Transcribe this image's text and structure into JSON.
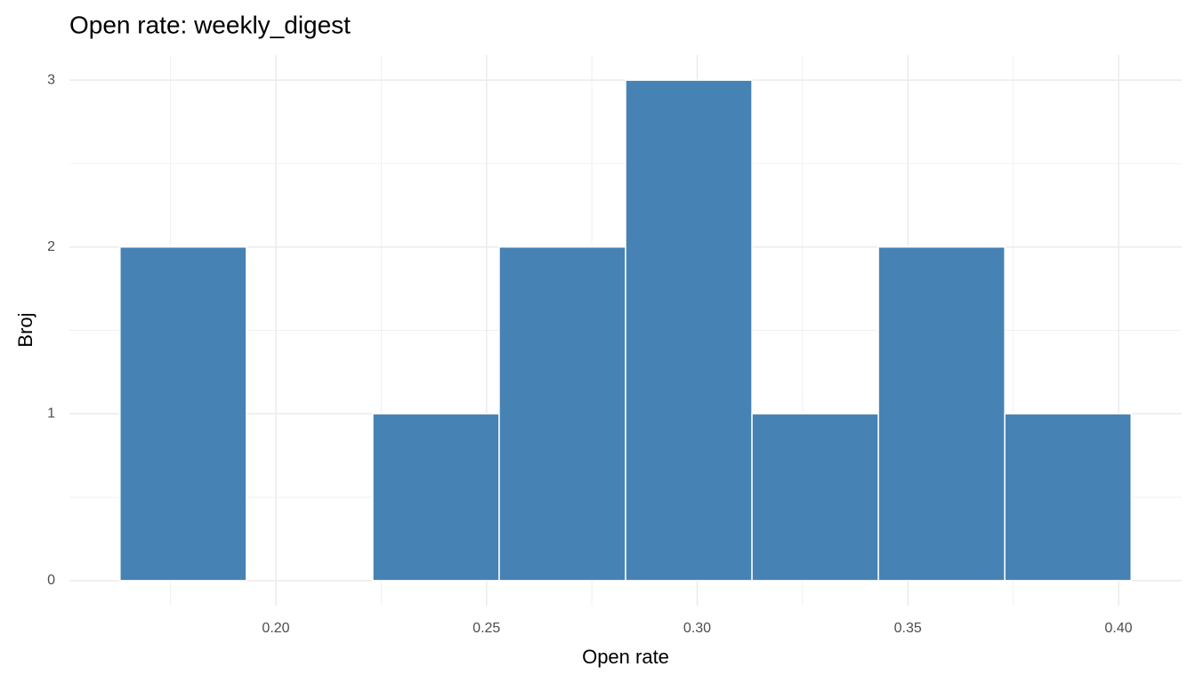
{
  "chart_data": {
    "type": "histogram",
    "title": "Open rate: weekly_digest",
    "x_label": "Open rate",
    "y_label": "Broj",
    "bins": [
      0.163,
      0.193,
      0.223,
      0.253,
      0.283,
      0.313,
      0.343,
      0.373,
      0.403
    ],
    "counts": [
      2,
      0,
      1,
      2,
      3,
      1,
      2,
      1
    ],
    "color": "#4682b4",
    "xlim": [
      0.151,
      0.415
    ],
    "ylim": [
      -0.15,
      3.15
    ],
    "xticks": [
      {
        "value": 0.2,
        "label": "0.20"
      },
      0.25,
      {
        "value": 0.3,
        "label": "0.30"
      },
      0.35,
      {
        "value": 0.4,
        "label": "0.40"
      }
    ],
    "yticks": [
      0,
      1,
      2,
      3
    ],
    "x_minor_grid": [
      0.175,
      0.225,
      0.275,
      0.325,
      0.375
    ],
    "y_minor_grid": [
      0.5,
      1.5,
      2.5
    ],
    "grid": true
  }
}
